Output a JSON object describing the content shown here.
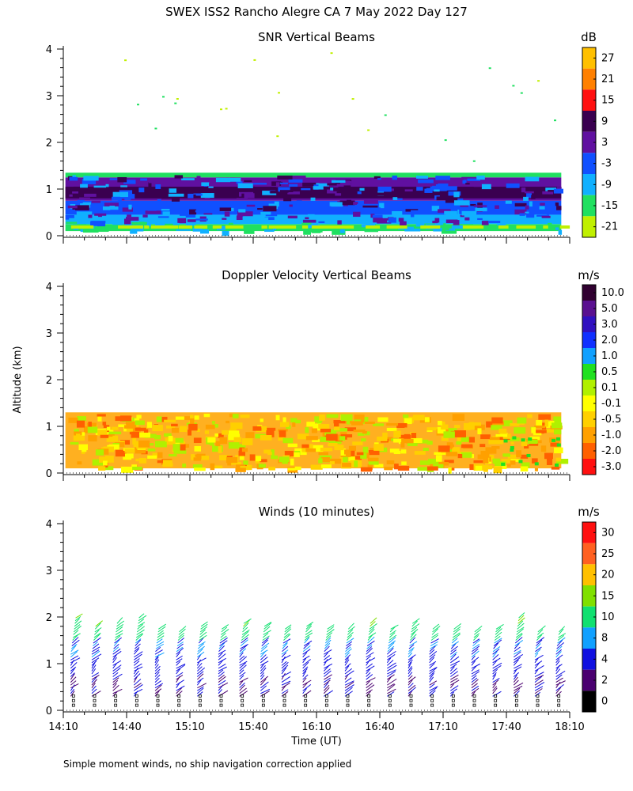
{
  "title": "SWEX ISS2 Rancho Alegre CA   7 May 2022 Day 127",
  "footer_note": "Simple moment winds, no ship navigation correction applied",
  "y_axis_label": "Altitude (km)",
  "x_axis_label": "Time (UT)",
  "chart_data": [
    {
      "type": "heatmap",
      "title": "SNR Vertical Beams",
      "units": "dB",
      "ylim": [
        0,
        4
      ],
      "y_ticks": [
        0,
        1,
        2,
        3,
        4
      ],
      "x_range_minutes_since_1410": [
        0,
        240
      ],
      "data_top_km": 1.3,
      "data_bottom_km": 0.1,
      "colorbar": {
        "labels": [
          "27",
          "21",
          "15",
          "9",
          "3",
          "-3",
          "-9",
          "-15",
          "-21"
        ],
        "colors": [
          "#ffc000",
          "#ff8000",
          "#ff1010",
          "#3a0050",
          "#6010a0",
          "#1050ff",
          "#10b0ff",
          "#20e060",
          "#c0f000"
        ]
      },
      "layers": [
        {
          "label": "-15",
          "bottom_km": 0.1,
          "top_km": 0.25,
          "color": "#20e060"
        },
        {
          "label": "-9",
          "bottom_km": 0.25,
          "top_km": 0.45,
          "color": "#10b0ff"
        },
        {
          "label": "-3",
          "bottom_km": 0.45,
          "top_km": 0.75,
          "color": "#1050ff"
        },
        {
          "label": "3",
          "bottom_km": 0.75,
          "top_km": 1.25,
          "color": "#6010a0"
        },
        {
          "label": "9",
          "bottom_km": 0.8,
          "top_km": 1.05,
          "color": "#3a0050"
        },
        {
          "label": "-15",
          "bottom_km": 1.25,
          "top_km": 1.35,
          "color": "#20e060"
        }
      ]
    },
    {
      "type": "heatmap",
      "title": "Doppler Velocity Vertical Beams",
      "units": "m/s",
      "ylim": [
        0,
        4
      ],
      "y_ticks": [
        0,
        1,
        2,
        3,
        4
      ],
      "x_range_minutes_since_1410": [
        0,
        240
      ],
      "data_top_km": 1.3,
      "data_bottom_km": 0.1,
      "colorbar": {
        "labels": [
          "10.0",
          "5.0",
          "3.0",
          "2.0",
          "1.0",
          "0.5",
          "0.1",
          "-0.1",
          "-0.5",
          "-1.0",
          "-2.0",
          "-3.0"
        ],
        "colors": [
          "#300030",
          "#5a1090",
          "#3010c0",
          "#1030ff",
          "#10a0ff",
          "#20e020",
          "#b0f000",
          "#ffff00",
          "#ffd000",
          "#ffa000",
          "#ff6000",
          "#ff1010"
        ]
      },
      "dominant_color": "#ffb020",
      "mix_colors": [
        "#ffd000",
        "#ffa000",
        "#b0f000",
        "#ffff00",
        "#ff6000"
      ]
    },
    {
      "type": "wind_barbs",
      "title": "Winds (10 minutes)",
      "units": "m/s",
      "ylim": [
        0,
        4
      ],
      "y_ticks": [
        0,
        1,
        2,
        3,
        4
      ],
      "x_range_minutes_since_1410": [
        0,
        240
      ],
      "x_ticks": [
        "14:10",
        "14:40",
        "15:10",
        "15:40",
        "16:10",
        "16:40",
        "17:10",
        "17:40",
        "18:10"
      ],
      "x_tick_minutes": [
        0,
        30,
        60,
        90,
        120,
        150,
        180,
        210,
        240
      ],
      "profile_times_minutes": [
        5,
        15,
        25,
        35,
        45,
        55,
        65,
        75,
        85,
        95,
        105,
        115,
        125,
        135,
        145,
        155,
        165,
        175,
        185,
        195,
        205,
        215,
        225,
        235
      ],
      "profile_top_km": [
        2.0,
        1.85,
        1.9,
        2.0,
        1.75,
        1.7,
        1.85,
        1.8,
        1.9,
        1.85,
        1.8,
        1.85,
        1.75,
        1.8,
        1.9,
        1.75,
        1.9,
        1.8,
        1.75,
        1.7,
        1.8,
        2.0,
        1.7,
        1.7
      ],
      "colorbar": {
        "labels": [
          "30",
          "25",
          "20",
          "15",
          "10",
          "8",
          "4",
          "2",
          "0"
        ],
        "colors": [
          "#ff1010",
          "#ff6020",
          "#ffc000",
          "#80e000",
          "#10e070",
          "#10a0ff",
          "#1010e0",
          "#4a0070",
          "#000000"
        ]
      }
    }
  ]
}
